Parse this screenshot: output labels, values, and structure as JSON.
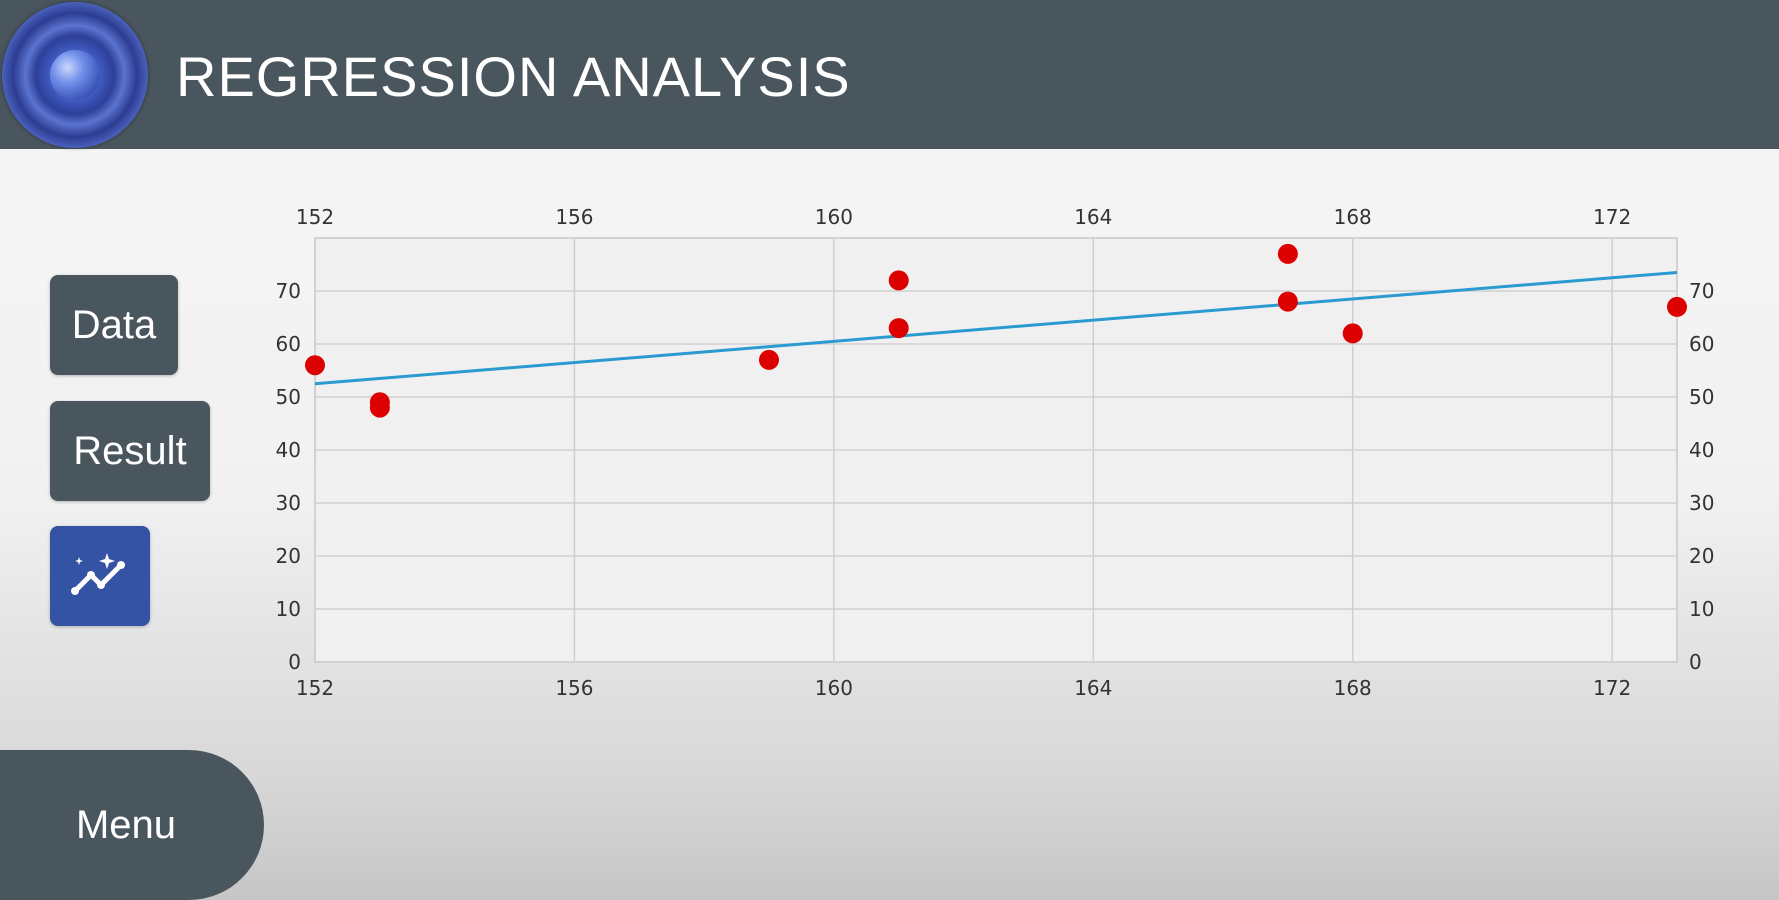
{
  "header": {
    "title": "REGRESSION ANALYSIS"
  },
  "sidebar": {
    "data_label": "Data",
    "result_label": "Result"
  },
  "footer": {
    "menu_label": "Menu"
  },
  "icons": {
    "logo": "app-logo-icon",
    "trend": "trend-sparkle-icon"
  },
  "colors": {
    "header": "#4a565e",
    "accent_button": "#3553a4",
    "points": "#dd0000",
    "regression_line": "#2a9bd0"
  },
  "chart_data": {
    "type": "scatter",
    "x_ticks": [
      152,
      156,
      160,
      164,
      168,
      172
    ],
    "y_ticks": [
      0,
      10,
      20,
      30,
      40,
      50,
      60,
      70
    ],
    "xlim": [
      152,
      173
    ],
    "ylim": [
      0,
      80
    ],
    "grid": true,
    "points": [
      {
        "x": 152,
        "y": 56
      },
      {
        "x": 153,
        "y": 48
      },
      {
        "x": 153,
        "y": 49
      },
      {
        "x": 159,
        "y": 57
      },
      {
        "x": 161,
        "y": 72
      },
      {
        "x": 161,
        "y": 63
      },
      {
        "x": 167,
        "y": 77
      },
      {
        "x": 167,
        "y": 68
      },
      {
        "x": 168,
        "y": 62
      },
      {
        "x": 173,
        "y": 67
      }
    ],
    "regression_line": {
      "x": [
        152,
        173
      ],
      "y": [
        52.5,
        73.5
      ]
    }
  }
}
